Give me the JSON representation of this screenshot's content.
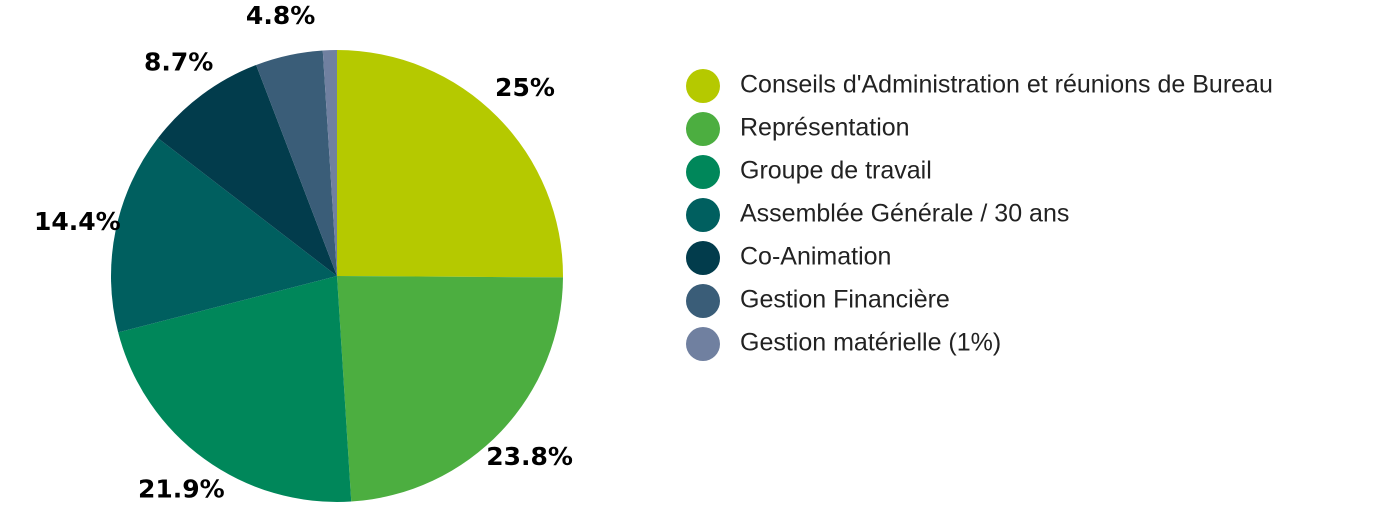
{
  "chart_data": {
    "type": "pie",
    "categories": [
      "Conseils d'Administration et réunions de Bureau",
      "Représentation",
      "Groupe de travail",
      "Assemblée Générale / 30 ans",
      "Co-Animation",
      "Gestion Financière",
      "Gestion matérielle (1%)"
    ],
    "values": [
      25,
      23.8,
      21.9,
      14.4,
      8.7,
      4.8,
      1
    ],
    "value_labels": [
      "25%",
      "23.8%",
      "21.9%",
      "14.4%",
      "8.7%",
      "4.8%",
      null
    ],
    "colors": [
      "#b5c900",
      "#4cae40",
      "#00875a",
      "#005f5f",
      "#023c4c",
      "#3a5d78",
      "#7080a0"
    ],
    "legend": "right"
  }
}
